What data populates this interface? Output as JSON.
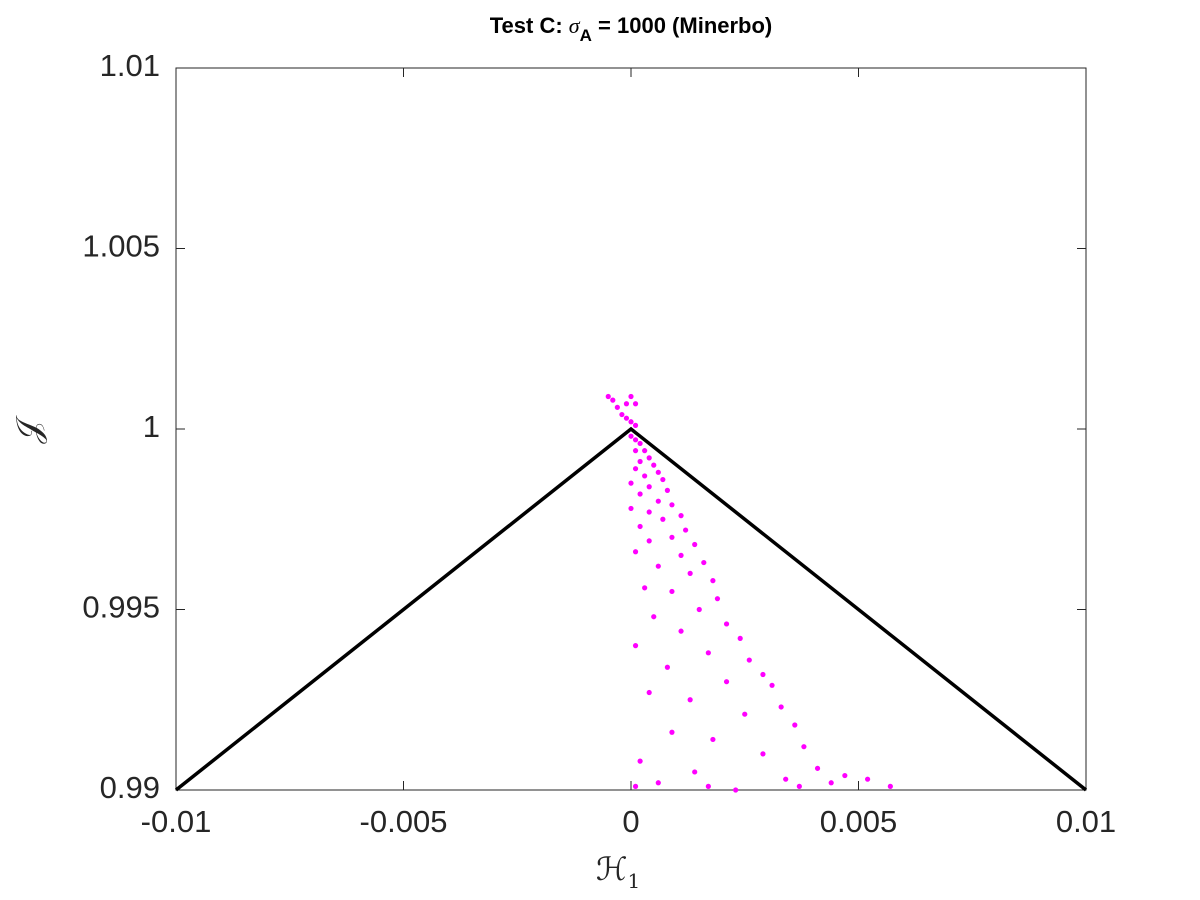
{
  "chart_data": {
    "type": "scatter",
    "title": [
      "Test C: ",
      "σ",
      "A",
      " = 1000 (Minerbo)"
    ],
    "x_label": [
      "ℋ",
      "1"
    ],
    "y_label": "𝒥",
    "xlim": [
      -0.01,
      0.01
    ],
    "ylim": [
      0.99,
      1.01
    ],
    "xticks": [
      -0.01,
      -0.005,
      0,
      0.005,
      0.01
    ],
    "yticks": [
      0.99,
      0.995,
      1,
      1.005,
      1.01
    ],
    "grid": false,
    "series": [
      {
        "kind": "line",
        "color": "#000000",
        "x": [
          -0.01,
          0,
          0.01
        ],
        "values": [
          0.99,
          1,
          0.99
        ]
      },
      {
        "kind": "scatter",
        "color": "#ff00ff",
        "x": [
          -0.0005,
          -0.0004,
          -0.0003,
          -0.0002,
          -0.0001,
          0,
          0.0001,
          -0.0001,
          0,
          0.0001,
          0,
          0.0001,
          0.0002,
          0.0001,
          0.0003,
          0.0004,
          0.0002,
          0.0005,
          0.0001,
          0.0006,
          0.0003,
          0.0007,
          0,
          0.0004,
          0.0008,
          0.0002,
          0.0006,
          0.0009,
          0,
          0.0004,
          0.0011,
          0.0007,
          0.0002,
          0.0012,
          0.0009,
          0.0004,
          0.0014,
          0.0001,
          0.0011,
          0.0016,
          0.0006,
          0.0013,
          0.0018,
          0.0003,
          0.0009,
          0.0019,
          0.0015,
          0.0005,
          0.0021,
          0.0011,
          0.0024,
          0.0001,
          0.0017,
          0.0026,
          0.0008,
          0.0029,
          0.0021,
          0.0031,
          0.0004,
          0.0013,
          0.0033,
          0.0025,
          0.0036,
          0.0009,
          0.0018,
          0.0038,
          0.0029,
          0.0002,
          0.0041,
          0.0014,
          0.0034,
          0.0044,
          0.0023,
          0.0006,
          0.0052,
          0.0057,
          0.0047,
          0.0037,
          0.0001,
          0.0017
        ],
        "values": [
          1.0009,
          1.0008,
          1.0006,
          1.0004,
          1.0003,
          1.0009,
          1.0007,
          1.0007,
          1.0002,
          1.0001,
          0.9998,
          0.9997,
          0.9996,
          0.9994,
          0.9994,
          0.9992,
          0.9991,
          0.999,
          0.9989,
          0.9988,
          0.9987,
          0.9986,
          0.9985,
          0.9984,
          0.9983,
          0.9982,
          0.998,
          0.9979,
          0.9978,
          0.9977,
          0.9976,
          0.9975,
          0.9973,
          0.9972,
          0.997,
          0.9969,
          0.9968,
          0.9966,
          0.9965,
          0.9963,
          0.9962,
          0.996,
          0.9958,
          0.9956,
          0.9955,
          0.9953,
          0.995,
          0.9948,
          0.9946,
          0.9944,
          0.9942,
          0.994,
          0.9938,
          0.9936,
          0.9934,
          0.9932,
          0.993,
          0.9929,
          0.9927,
          0.9925,
          0.9923,
          0.9921,
          0.9918,
          0.9916,
          0.9914,
          0.9912,
          0.991,
          0.9908,
          0.9906,
          0.9905,
          0.9903,
          0.9902,
          0.99,
          0.9902,
          0.9903,
          0.9901,
          0.9904,
          0.9901,
          0.9901,
          0.9901
        ]
      }
    ]
  }
}
